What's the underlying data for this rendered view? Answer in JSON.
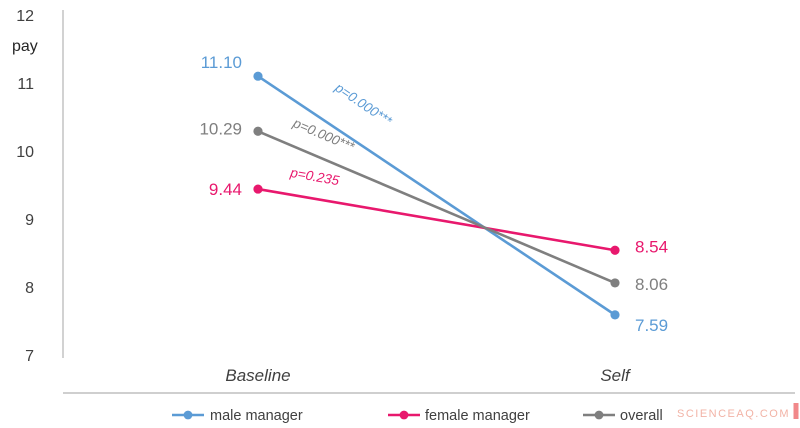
{
  "chart_data": {
    "type": "line",
    "title": "",
    "ylabel": "pay",
    "categories": [
      "Baseline",
      "Self"
    ],
    "y_ticks": [
      12,
      11,
      10,
      9,
      8,
      7
    ],
    "ylim": [
      7,
      12
    ],
    "grid": false,
    "legend_position": "bottom",
    "series": [
      {
        "name": "male manager",
        "color": "#5B9BD5",
        "values": [
          11.1,
          7.59
        ],
        "labels": [
          "11.10",
          "7.59"
        ],
        "p_label": "p=0.000***"
      },
      {
        "name": "female manager",
        "color": "#E8186D",
        "values": [
          9.44,
          8.54
        ],
        "labels": [
          "9.44",
          "8.54"
        ],
        "p_label": "p=0.235"
      },
      {
        "name": "overall",
        "color": "#7F7F7F",
        "values": [
          10.29,
          8.06
        ],
        "labels": [
          "10.29",
          "8.06"
        ],
        "p_label": "p=0.000***"
      }
    ]
  },
  "watermark": "SCIENCEAQ.COM"
}
